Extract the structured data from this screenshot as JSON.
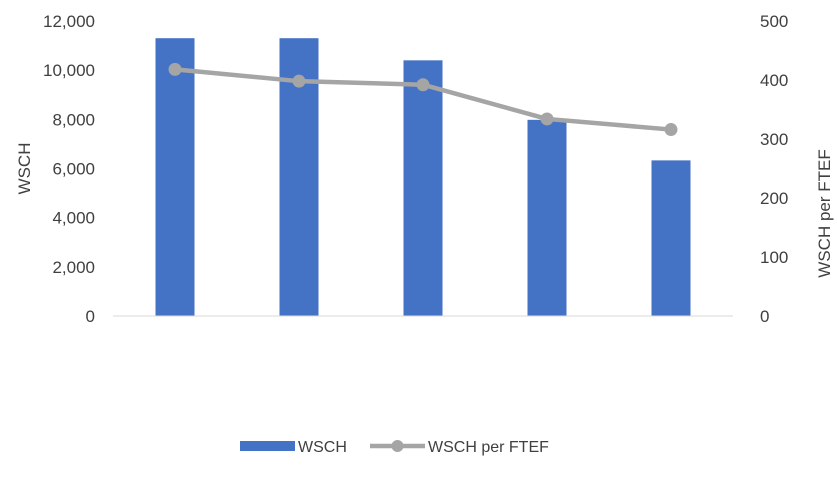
{
  "chart_data": {
    "type": "bar",
    "categories": [
      "",
      "",
      "",
      "",
      ""
    ],
    "series": [
      {
        "name": "WSCH",
        "type": "bar",
        "axis": "left",
        "color": "#4472C4",
        "values": [
          11300,
          11300,
          10400,
          7980,
          6330
        ]
      },
      {
        "name": "WSCH per FTEF",
        "type": "line",
        "axis": "right",
        "color": "#A5A5A5",
        "values": [
          418,
          398,
          392,
          334,
          316
        ]
      }
    ],
    "y_left": {
      "label": "WSCH",
      "ylim": [
        0,
        12000
      ],
      "ticks": [
        "0",
        "2,000",
        "4,000",
        "6,000",
        "8,000",
        "10,000",
        "12,000"
      ]
    },
    "y_right": {
      "label": "WSCH per FTEF",
      "ylim": [
        0,
        500
      ],
      "ticks": [
        "0",
        "100",
        "200",
        "300",
        "400",
        "500"
      ]
    },
    "grid": false,
    "legend": {
      "position": "bottom",
      "entries": [
        "WSCH",
        "WSCH per FTEF"
      ]
    }
  }
}
